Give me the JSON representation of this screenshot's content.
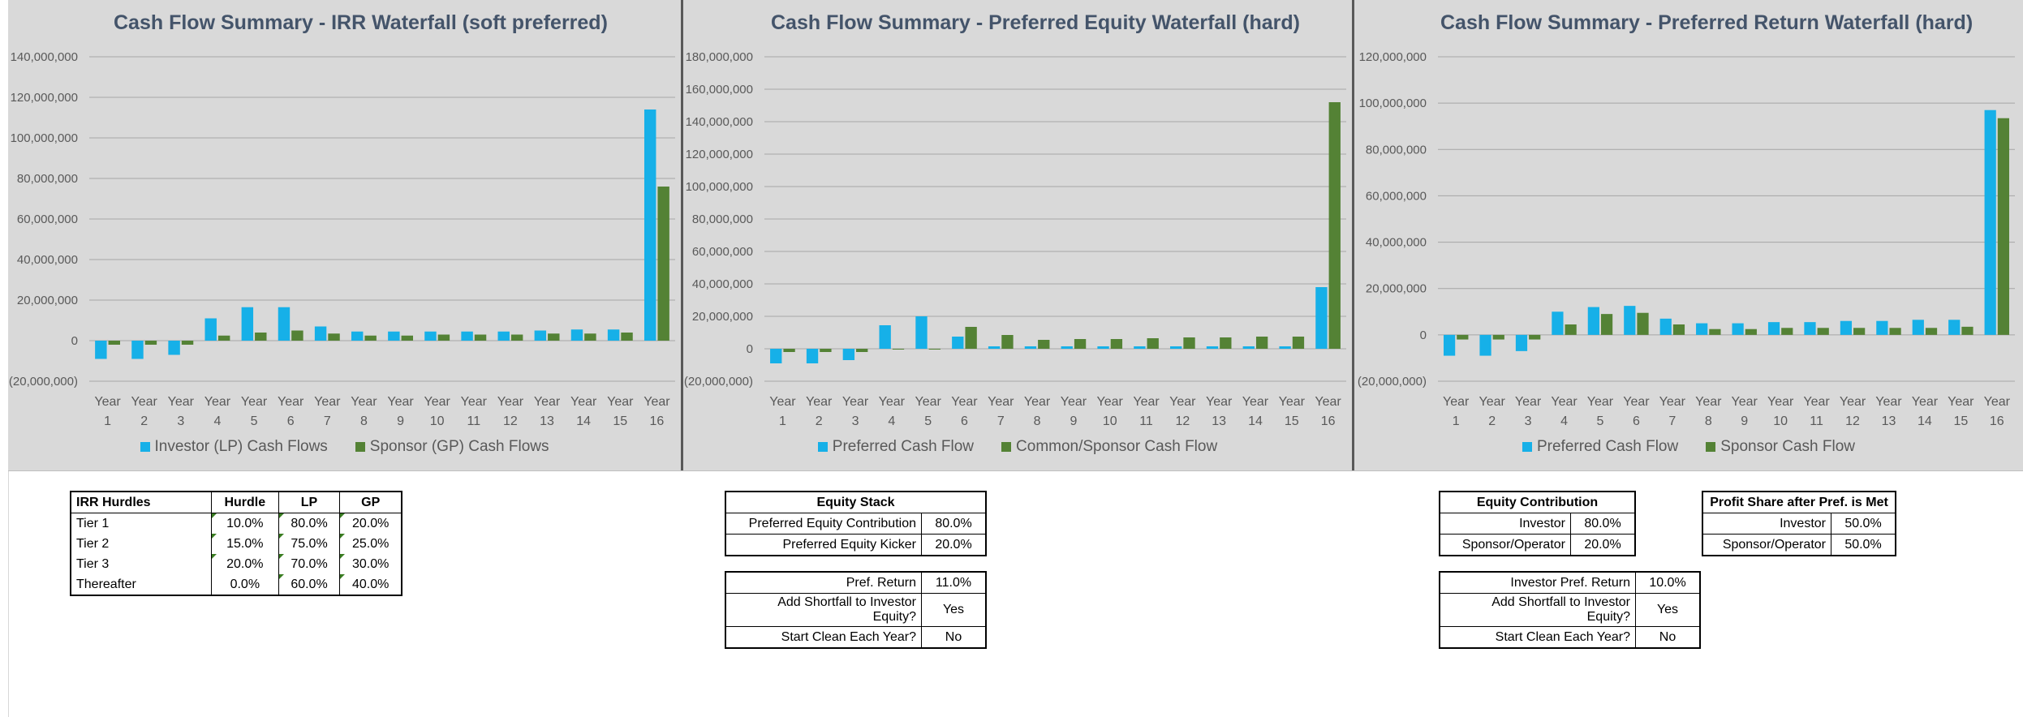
{
  "charts": {
    "chart1": {
      "title": "Cash Flow Summary - IRR Waterfall (soft preferred)",
      "legend": [
        "Investor (LP) Cash Flows",
        "Sponsor (GP) Cash Flows"
      ],
      "yticks": [
        "140,000,000",
        "120,000,000",
        "100,000,000",
        "80,000,000",
        "60,000,000",
        "40,000,000",
        "20,000,000",
        "0",
        "(20,000,000)"
      ]
    },
    "chart2": {
      "title": "Cash Flow Summary - Preferred Equity Waterfall (hard)",
      "legend": [
        "Preferred Cash Flow",
        "Common/Sponsor Cash Flow"
      ],
      "yticks": [
        "180,000,000",
        "160,000,000",
        "140,000,000",
        "120,000,000",
        "100,000,000",
        "80,000,000",
        "60,000,000",
        "40,000,000",
        "20,000,000",
        "0",
        "(20,000,000)"
      ]
    },
    "chart3": {
      "title": "Cash Flow Summary - Preferred Return Waterfall (hard)",
      "legend": [
        "Preferred Cash Flow",
        "Sponsor Cash Flow"
      ],
      "yticks": [
        "120,000,000",
        "100,000,000",
        "80,000,000",
        "60,000,000",
        "40,000,000",
        "20,000,000",
        "0",
        "(20,000,000)"
      ]
    }
  },
  "chart_data": [
    {
      "type": "bar",
      "title": "Cash Flow Summary - IRR Waterfall (soft preferred)",
      "categories": [
        "Year 1",
        "Year 2",
        "Year 3",
        "Year 4",
        "Year 5",
        "Year 6",
        "Year 7",
        "Year 8",
        "Year 9",
        "Year 10",
        "Year 11",
        "Year 12",
        "Year 13",
        "Year 14",
        "Year 15",
        "Year 16"
      ],
      "series": [
        {
          "name": "Investor (LP) Cash Flows",
          "values": [
            -9000000,
            -9000000,
            -7000000,
            11000000,
            16500000,
            16500000,
            7000000,
            4500000,
            4500000,
            4500000,
            4500000,
            4500000,
            5000000,
            5500000,
            5500000,
            114000000
          ]
        },
        {
          "name": "Sponsor (GP) Cash Flows",
          "values": [
            -2000000,
            -2000000,
            -2000000,
            2500000,
            4000000,
            5000000,
            3500000,
            2500000,
            2500000,
            3000000,
            3000000,
            3000000,
            3500000,
            3500000,
            4000000,
            76000000
          ]
        }
      ],
      "ylim": [
        -20000000,
        140000000
      ],
      "colors": [
        "#16b0e8",
        "#548235"
      ]
    },
    {
      "type": "bar",
      "title": "Cash Flow Summary - Preferred Equity Waterfall (hard)",
      "categories": [
        "Year 1",
        "Year 2",
        "Year 3",
        "Year 4",
        "Year 5",
        "Year 6",
        "Year 7",
        "Year 8",
        "Year 9",
        "Year 10",
        "Year 11",
        "Year 12",
        "Year 13",
        "Year 14",
        "Year 15",
        "Year 16"
      ],
      "series": [
        {
          "name": "Preferred Cash Flow",
          "values": [
            -9000000,
            -9000000,
            -7000000,
            14500000,
            20000000,
            7500000,
            1500000,
            1500000,
            1500000,
            1500000,
            1500000,
            1500000,
            1500000,
            1500000,
            1500000,
            38000000
          ]
        },
        {
          "name": "Common/Sponsor Cash Flow",
          "values": [
            -2000000,
            -2000000,
            -2000000,
            -500000,
            0,
            13500000,
            8500000,
            5500000,
            6000000,
            6000000,
            6500000,
            7000000,
            7000000,
            7500000,
            7500000,
            152000000
          ]
        }
      ],
      "ylim": [
        -20000000,
        180000000
      ],
      "colors": [
        "#16b0e8",
        "#548235"
      ]
    },
    {
      "type": "bar",
      "title": "Cash Flow Summary - Preferred Return Waterfall (hard)",
      "categories": [
        "Year 1",
        "Year 2",
        "Year 3",
        "Year 4",
        "Year 5",
        "Year 6",
        "Year 7",
        "Year 8",
        "Year 9",
        "Year 10",
        "Year 11",
        "Year 12",
        "Year 13",
        "Year 14",
        "Year 15",
        "Year 16"
      ],
      "series": [
        {
          "name": "Preferred Cash Flow",
          "values": [
            -9000000,
            -9000000,
            -7000000,
            10000000,
            12000000,
            12500000,
            7000000,
            5000000,
            5000000,
            5500000,
            5500000,
            6000000,
            6000000,
            6500000,
            6500000,
            97000000
          ]
        },
        {
          "name": "Sponsor Cash Flow",
          "values": [
            -2000000,
            -2000000,
            -2000000,
            4500000,
            9000000,
            9500000,
            4500000,
            2500000,
            2500000,
            3000000,
            3000000,
            3000000,
            3000000,
            3000000,
            3500000,
            93500000
          ]
        }
      ],
      "ylim": [
        -20000000,
        120000000
      ],
      "colors": [
        "#16b0e8",
        "#548235"
      ]
    }
  ],
  "irr_hurdles": {
    "headers": [
      "IRR Hurdles",
      "Hurdle",
      "LP",
      "GP"
    ],
    "rows": [
      [
        "Tier 1",
        "10.0%",
        "80.0%",
        "20.0%"
      ],
      [
        "Tier 2",
        "15.0%",
        "75.0%",
        "25.0%"
      ],
      [
        "Tier 3",
        "20.0%",
        "70.0%",
        "30.0%"
      ],
      [
        "Thereafter",
        "0.0%",
        "60.0%",
        "40.0%"
      ]
    ]
  },
  "equity_stack": {
    "title": "Equity Stack",
    "rows": [
      [
        "Preferred Equity Contribution",
        "80.0%"
      ],
      [
        "Preferred Equity Kicker",
        "20.0%"
      ]
    ]
  },
  "pref_settings": {
    "rows": [
      [
        "Pref. Return",
        "11.0%"
      ],
      [
        "Add Shortfall to Investor Equity?",
        "Yes"
      ],
      [
        "Start Clean Each Year?",
        "No"
      ]
    ]
  },
  "equity_contribution": {
    "title": "Equity Contribution",
    "rows": [
      [
        "Investor",
        "80.0%"
      ],
      [
        "Sponsor/Operator",
        "20.0%"
      ]
    ]
  },
  "profit_share": {
    "title": "Profit Share after Pref. is Met",
    "rows": [
      [
        "Investor",
        "50.0%"
      ],
      [
        "Sponsor/Operator",
        "50.0%"
      ]
    ]
  },
  "investor_pref_settings": {
    "rows": [
      [
        "Investor Pref. Return",
        "10.0%"
      ],
      [
        "Add Shortfall to Investor Equity?",
        "Yes"
      ],
      [
        "Start Clean Each Year?",
        "No"
      ]
    ]
  }
}
